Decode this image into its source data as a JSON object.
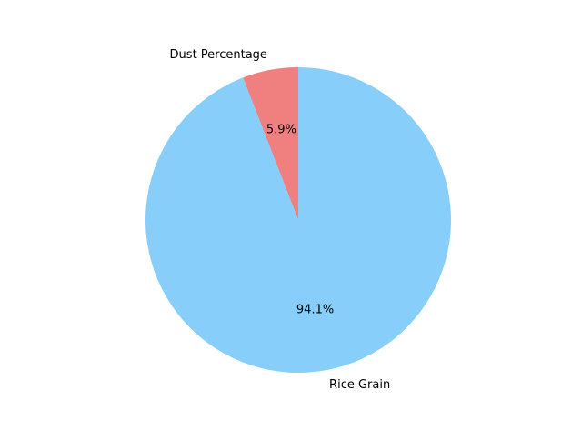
{
  "chart_data": {
    "type": "pie",
    "title": "",
    "start_angle_deg": 90,
    "direction": "counterclockwise",
    "slices": [
      {
        "label": "Dust Percentage",
        "value": 5.9,
        "pct_label": "5.9%",
        "color": "#f08080"
      },
      {
        "label": "Rice Grain",
        "value": 94.1,
        "pct_label": "94.1%",
        "color": "#87cefa"
      }
    ]
  }
}
